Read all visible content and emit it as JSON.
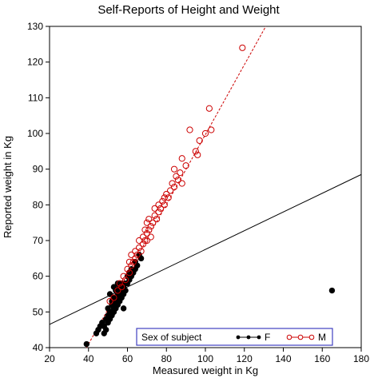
{
  "chart_data": {
    "type": "scatter",
    "title": "Self-Reports of Height and Weight",
    "xlabel": "Measured weight in Kg",
    "ylabel": "Reported weight in Kg",
    "xlim": [
      20,
      180
    ],
    "ylim": [
      40,
      130
    ],
    "xticks": [
      20,
      40,
      60,
      80,
      100,
      120,
      140,
      160,
      180
    ],
    "yticks": [
      40,
      50,
      60,
      70,
      80,
      90,
      100,
      110,
      120,
      130
    ],
    "grid": false,
    "legend": {
      "title": "Sex of subject",
      "placement": "bottom-right",
      "entries": [
        {
          "name": "F",
          "color": "#000000",
          "marker": "filled-circle"
        },
        {
          "name": "M",
          "color": "#cc0000",
          "marker": "open-circle"
        }
      ]
    },
    "series": [
      {
        "name": "F",
        "color": "#000000",
        "marker": "filled-circle",
        "points": [
          [
            39,
            41
          ],
          [
            44,
            44
          ],
          [
            45,
            45
          ],
          [
            46,
            46
          ],
          [
            47,
            47
          ],
          [
            48,
            44
          ],
          [
            48,
            46
          ],
          [
            49,
            45
          ],
          [
            49,
            48
          ],
          [
            50,
            47
          ],
          [
            50,
            49
          ],
          [
            50,
            51
          ],
          [
            51,
            48
          ],
          [
            51,
            50
          ],
          [
            51,
            55
          ],
          [
            52,
            49
          ],
          [
            52,
            50
          ],
          [
            52,
            52
          ],
          [
            52,
            53
          ],
          [
            53,
            50
          ],
          [
            53,
            51
          ],
          [
            53,
            53
          ],
          [
            53,
            54
          ],
          [
            53,
            57
          ],
          [
            54,
            51
          ],
          [
            54,
            52
          ],
          [
            54,
            54
          ],
          [
            54,
            56
          ],
          [
            55,
            52
          ],
          [
            55,
            53
          ],
          [
            55,
            55
          ],
          [
            55,
            56
          ],
          [
            55,
            58
          ],
          [
            56,
            53
          ],
          [
            56,
            54
          ],
          [
            56,
            55
          ],
          [
            56,
            57
          ],
          [
            57,
            54
          ],
          [
            57,
            56
          ],
          [
            57,
            58
          ],
          [
            58,
            51
          ],
          [
            58,
            55
          ],
          [
            58,
            57
          ],
          [
            59,
            56
          ],
          [
            59,
            58
          ],
          [
            60,
            58
          ],
          [
            60,
            60
          ],
          [
            61,
            59
          ],
          [
            61,
            61
          ],
          [
            62,
            60
          ],
          [
            62,
            62
          ],
          [
            63,
            61
          ],
          [
            64,
            62
          ],
          [
            64,
            64
          ],
          [
            65,
            63
          ],
          [
            66,
            66
          ],
          [
            67,
            65
          ],
          [
            165,
            56
          ]
        ]
      },
      {
        "name": "M",
        "color": "#cc0000",
        "marker": "open-circle",
        "points": [
          [
            51,
            53
          ],
          [
            53,
            54
          ],
          [
            55,
            56
          ],
          [
            56,
            58
          ],
          [
            57,
            57
          ],
          [
            58,
            60
          ],
          [
            59,
            59
          ],
          [
            60,
            62
          ],
          [
            61,
            61
          ],
          [
            61,
            64
          ],
          [
            62,
            63
          ],
          [
            62,
            66
          ],
          [
            63,
            64
          ],
          [
            64,
            65
          ],
          [
            64,
            67
          ],
          [
            65,
            66
          ],
          [
            66,
            68
          ],
          [
            66,
            70
          ],
          [
            67,
            67
          ],
          [
            68,
            69
          ],
          [
            68,
            71
          ],
          [
            69,
            70
          ],
          [
            69,
            73
          ],
          [
            70,
            70
          ],
          [
            70,
            72
          ],
          [
            70,
            75
          ],
          [
            71,
            73
          ],
          [
            71,
            76
          ],
          [
            72,
            71
          ],
          [
            72,
            74
          ],
          [
            73,
            75
          ],
          [
            74,
            77
          ],
          [
            74,
            79
          ],
          [
            75,
            76
          ],
          [
            76,
            78
          ],
          [
            76,
            80
          ],
          [
            77,
            79
          ],
          [
            78,
            81
          ],
          [
            79,
            80
          ],
          [
            79,
            82
          ],
          [
            80,
            83
          ],
          [
            81,
            82
          ],
          [
            82,
            84
          ],
          [
            83,
            86
          ],
          [
            84,
            85
          ],
          [
            84,
            90
          ],
          [
            85,
            88
          ],
          [
            86,
            87
          ],
          [
            87,
            89
          ],
          [
            88,
            86
          ],
          [
            88,
            93
          ],
          [
            90,
            91
          ],
          [
            92,
            101
          ],
          [
            95,
            95
          ],
          [
            96,
            94
          ],
          [
            97,
            98
          ],
          [
            100,
            100
          ],
          [
            102,
            107
          ],
          [
            103,
            101
          ],
          [
            119,
            124
          ]
        ]
      }
    ],
    "reference_lines": [
      {
        "name": "identity",
        "color": "#000000",
        "style": "solid",
        "from": [
          20,
          46.5
        ],
        "to": [
          180,
          88.5
        ]
      },
      {
        "name": "M-fit",
        "color": "#cc0000",
        "style": "dashed",
        "from": [
          39,
          40
        ],
        "to": [
          131,
          130
        ]
      }
    ]
  }
}
